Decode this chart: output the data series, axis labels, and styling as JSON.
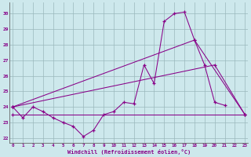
{
  "xlabel": "Windchill (Refroidissement éolien,°C)",
  "background_color": "#cde8ec",
  "grid_color": "#9ab8bc",
  "line_color": "#880088",
  "x_ticks": [
    0,
    1,
    2,
    3,
    4,
    5,
    6,
    7,
    8,
    9,
    10,
    11,
    12,
    13,
    14,
    15,
    16,
    17,
    18,
    19,
    20,
    21,
    22,
    23
  ],
  "yticks": [
    22,
    23,
    24,
    25,
    26,
    27,
    28,
    29,
    30
  ],
  "ylim": [
    21.7,
    30.7
  ],
  "xlim": [
    -0.3,
    23.3
  ],
  "line1_x": [
    0,
    1,
    2,
    3,
    4,
    5,
    6,
    7,
    8,
    9,
    10,
    11,
    12,
    13,
    14,
    15,
    16,
    17,
    18,
    19,
    20,
    21
  ],
  "line1_y": [
    24.0,
    23.3,
    24.0,
    23.7,
    23.3,
    23.0,
    22.75,
    22.1,
    22.5,
    23.5,
    23.7,
    24.3,
    24.2,
    26.7,
    25.5,
    29.5,
    30.0,
    30.1,
    28.3,
    26.7,
    24.3,
    24.1
  ],
  "line2_x": [
    0,
    18,
    23
  ],
  "line2_y": [
    24.0,
    28.3,
    23.5
  ],
  "line3_x": [
    0,
    20,
    23
  ],
  "line3_y": [
    24.0,
    26.7,
    23.5
  ],
  "line4_x": [
    0,
    23
  ],
  "line4_y": [
    23.5,
    23.5
  ]
}
